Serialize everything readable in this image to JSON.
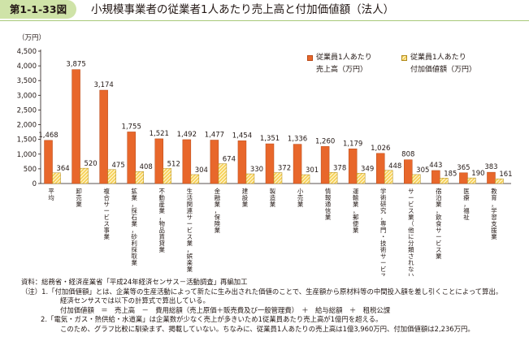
{
  "figure": {
    "label": "第1-1-33図",
    "title": "小規模事業者の従業者1人あたり売上高と付加価値額（法人）"
  },
  "colors": {
    "sales": "#e8672b",
    "sales_border": "#b84a18",
    "value_added": "#f7d25a",
    "value_added_border": "#b08a1c",
    "header_band": "#cfe3a8"
  },
  "chart_data": {
    "type": "bar",
    "unit_label": "（万円）",
    "ylim": [
      0,
      4500
    ],
    "yticks": [
      "0",
      "500",
      "1,000",
      "1,500",
      "2,000",
      "2,500",
      "3,000",
      "3,500",
      "4,000",
      "4,500"
    ],
    "ytick_values": [
      0,
      500,
      1000,
      1500,
      2000,
      2500,
      3000,
      3500,
      4000,
      4500
    ],
    "grid": false,
    "legend_position": "top-right",
    "categories": [
      "平均",
      "卸売業",
      "複合サービス事業",
      "鉱業，採石業，砂利採取業",
      "不動産業，物品賃貸業",
      "生活関連サービス業，娯楽業",
      "金融業，保険業",
      "建設業",
      "製造業",
      "小売業",
      "情報通信業",
      "運輸業，郵便業",
      "学術研究，専門・技術サービス業",
      "サービス業（他に分類されないもの）",
      "宿泊業，飲食サービス業",
      "医療，福祉",
      "教育，学習支援業"
    ],
    "series": [
      {
        "name": "従業員1人あたり売上高（万円）",
        "values": [
          1468,
          3875,
          3174,
          1755,
          1521,
          1492,
          1477,
          1454,
          1351,
          1336,
          1260,
          1179,
          1026,
          808,
          443,
          365,
          383
        ],
        "labels": [
          "1,468",
          "3,875",
          "3,174",
          "1,755",
          "1,521",
          "1,492",
          "1,477",
          "1,454",
          "1,351",
          "1,336",
          "1,260",
          "1,179",
          "1,026",
          "808",
          "443",
          "365",
          "383"
        ]
      },
      {
        "name": "従業員1人あたり付加価値額（万円）",
        "values": [
          364,
          520,
          475,
          408,
          512,
          304,
          674,
          330,
          372,
          301,
          378,
          349,
          448,
          305,
          185,
          190,
          161
        ],
        "labels": [
          "364",
          "520",
          "475",
          "408",
          "512",
          "304",
          "674",
          "330",
          "372",
          "301",
          "378",
          "349",
          "448",
          "305",
          "185",
          "190",
          "161"
        ]
      }
    ]
  },
  "legend": {
    "sales_line1": "従業員1人あたり",
    "sales_line2": "売上高（万円）",
    "va_line1": "従業員1人あたり",
    "va_line2": "付加価値額（万円）"
  },
  "notes": {
    "source": "資料：総務省・経済産業省「平成24年経済センサス－活動調査」再編加工",
    "note1a": "（注）1.「付加価値額」とは、企業等の生産活動によって新たに生み出された価値のことで、生産額から原材料等の中間投入額を差し引くことによって算出。",
    "note1b": "経済センサスでは以下の計算式で算出している。",
    "note1c": "付加価値額　＝　売上高　－　費用総額（売上原価＋販売費及び一般管理費）　＋　給与総額　＋　租税公課",
    "note2a": "2.「電気・ガス・熱供給・水道業」は企業数が少なく売上が多きいため1従業員あたり売上高が1億円を超える。",
    "note2b": "このため、グラフ比較に馴染まず、掲載していない。ちなみに、従業員1人あたりの売上高は1億3,960万円、付加価値額は2,236万円。"
  }
}
